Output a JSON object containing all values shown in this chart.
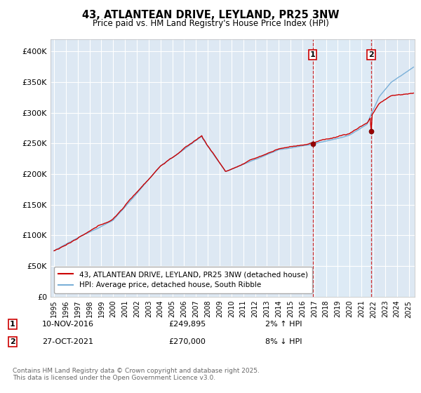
{
  "title_line1": "43, ATLANTEAN DRIVE, LEYLAND, PR25 3NW",
  "title_line2": "Price paid vs. HM Land Registry's House Price Index (HPI)",
  "ylabel_ticks": [
    "£0",
    "£50K",
    "£100K",
    "£150K",
    "£200K",
    "£250K",
    "£300K",
    "£350K",
    "£400K"
  ],
  "ytick_values": [
    0,
    50000,
    100000,
    150000,
    200000,
    250000,
    300000,
    350000,
    400000
  ],
  "ylim": [
    0,
    420000
  ],
  "xlim_start": 1994.7,
  "xlim_end": 2025.5,
  "hpi_color": "#7ab0d8",
  "price_color": "#cc0000",
  "marker1_date": 2016.87,
  "marker1_price": 249895,
  "marker2_date": 2021.83,
  "marker2_price": 270000,
  "legend_line1": "43, ATLANTEAN DRIVE, LEYLAND, PR25 3NW (detached house)",
  "legend_line2": "HPI: Average price, detached house, South Ribble",
  "footnote": "Contains HM Land Registry data © Crown copyright and database right 2025.\nThis data is licensed under the Open Government Licence v3.0.",
  "background_color": "#ffffff",
  "plot_bg_color": "#dde8f3",
  "grid_color": "#ffffff",
  "shade_color": "#ddeaf5"
}
